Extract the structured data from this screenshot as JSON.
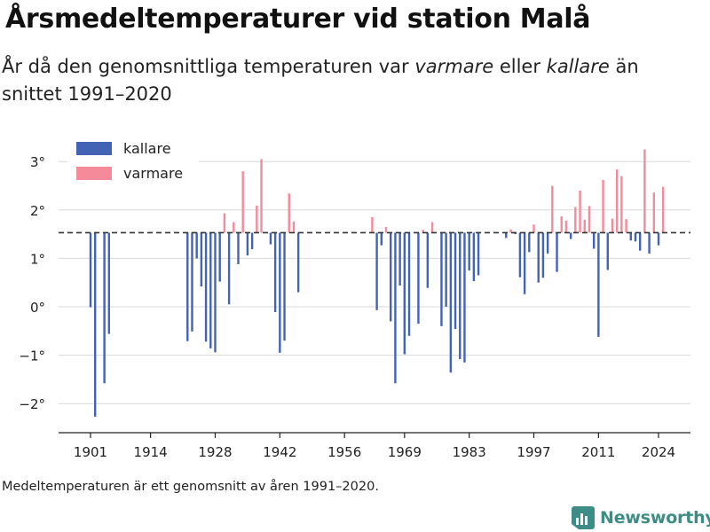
{
  "title": "Årsmedeltemperaturer vid station Malå",
  "subtitle": {
    "before": "År då den genomsnittliga temperaturen var ",
    "warm_word": "varmare",
    "middle": " eller ",
    "cold_word": "kallare",
    "after": " än snittet 1991–2020"
  },
  "source_note": "Medeltemperaturen är ett genomsnitt av åren 1991–2020.",
  "brand": "Newsworthy",
  "colors": {
    "colder": "#4363b4",
    "warmer": "#f58a9a",
    "brand": "#3b8d85",
    "grid": "#d9d9d9",
    "baseline": "#333333"
  },
  "chart_data": {
    "type": "bar",
    "baseline": 1.53,
    "baseline_style": "dashed",
    "ylim": [
      -2.45,
      3.45
    ],
    "xlim": [
      1896,
      2029
    ],
    "y_ticks": [
      -2,
      -1,
      0,
      1,
      2,
      3
    ],
    "y_tick_labels": [
      "−2°",
      "−1°",
      "0°",
      "1°",
      "2°",
      "3°"
    ],
    "x_ticks": [
      1901,
      1914,
      1928,
      1942,
      1956,
      1969,
      1983,
      1997,
      2011,
      2024
    ],
    "grid": true,
    "legend": {
      "position": "top-left",
      "items": [
        {
          "label": "kallare",
          "color": "#4363b4"
        },
        {
          "label": "varmare",
          "color": "#f58a9a"
        }
      ]
    },
    "years": [
      1901,
      1902,
      1903,
      1904,
      1905,
      1906,
      1907,
      1908,
      1909,
      1910,
      1911,
      1912,
      1913,
      1914,
      1915,
      1916,
      1917,
      1918,
      1919,
      1920,
      1921,
      1922,
      1923,
      1924,
      1925,
      1926,
      1927,
      1928,
      1929,
      1930,
      1931,
      1932,
      1933,
      1934,
      1935,
      1936,
      1937,
      1938,
      1939,
      1940,
      1941,
      1942,
      1943,
      1944,
      1945,
      1946,
      1947,
      1948,
      1949,
      1950,
      1951,
      1952,
      1953,
      1954,
      1955,
      1956,
      1957,
      1958,
      1959,
      1960,
      1961,
      1962,
      1963,
      1964,
      1965,
      1966,
      1967,
      1968,
      1969,
      1970,
      1971,
      1972,
      1973,
      1974,
      1975,
      1976,
      1977,
      1978,
      1979,
      1980,
      1981,
      1982,
      1983,
      1984,
      1985,
      1986,
      1987,
      1988,
      1989,
      1990,
      1991,
      1992,
      1993,
      1994,
      1995,
      1996,
      1997,
      1998,
      1999,
      2000,
      2001,
      2002,
      2003,
      2004,
      2005,
      2006,
      2007,
      2008,
      2009,
      2010,
      2011,
      2012,
      2013,
      2014,
      2015,
      2016,
      2017,
      2018,
      2019,
      2020,
      2021,
      2022,
      2023,
      2024,
      2025
    ],
    "values": [
      -0.01,
      -2.27,
      null,
      -1.58,
      -0.56,
      null,
      null,
      null,
      null,
      null,
      null,
      null,
      null,
      null,
      null,
      null,
      null,
      null,
      null,
      null,
      null,
      -0.71,
      -0.51,
      1.0,
      0.42,
      -0.72,
      -0.86,
      -0.94,
      0.52,
      1.93,
      0.05,
      1.75,
      0.88,
      2.8,
      1.06,
      1.19,
      2.09,
      3.05,
      null,
      1.29,
      -0.11,
      -0.95,
      -0.7,
      2.34,
      1.76,
      0.3,
      null,
      null,
      null,
      null,
      null,
      null,
      null,
      null,
      null,
      null,
      null,
      null,
      null,
      null,
      null,
      1.85,
      -0.07,
      1.27,
      1.65,
      -0.3,
      -1.58,
      0.44,
      -0.98,
      -0.6,
      null,
      -0.35,
      1.59,
      0.39,
      1.75,
      null,
      -0.4,
      0.0,
      -1.36,
      -0.46,
      -1.08,
      -1.15,
      0.75,
      0.53,
      0.65,
      null,
      null,
      null,
      null,
      null,
      1.42,
      1.6,
      1.5,
      0.61,
      0.26,
      1.13,
      1.7,
      0.5,
      0.6,
      1.1,
      2.5,
      0.72,
      1.87,
      1.78,
      1.4,
      2.06,
      2.4,
      1.8,
      2.08,
      1.2,
      -0.62,
      2.62,
      0.76,
      1.82,
      2.84,
      2.7,
      1.81,
      1.37,
      1.35,
      1.16,
      3.25,
      1.1,
      2.36,
      1.27,
      2.48
    ]
  }
}
